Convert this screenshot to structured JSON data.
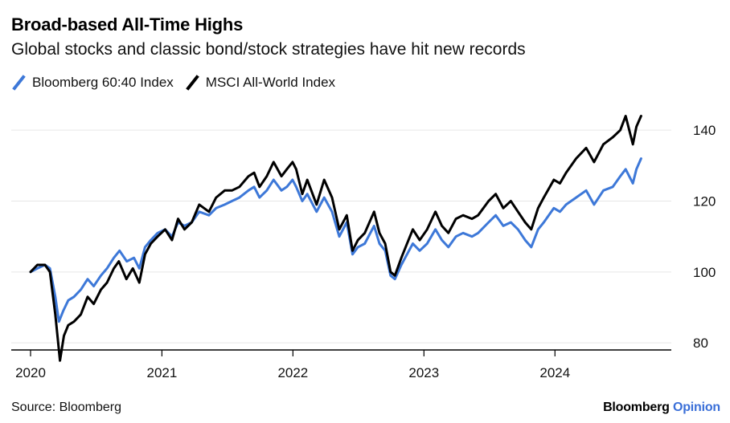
{
  "header": {
    "title": "Broad-based All-Time Highs",
    "subtitle": "Global stocks and classic bond/stock strategies have hit new records"
  },
  "footer": {
    "source": "Source: Bloomberg",
    "brand_main": "Bloomberg",
    "brand_sub": "Opinion"
  },
  "colors": {
    "sixty_forty": "#3d78d8",
    "msci": "#000000",
    "grid": "#e6e6e6",
    "axis": "#000000"
  },
  "chart_data": {
    "type": "line",
    "title": "Broad-based All-Time Highs",
    "subtitle": "Global stocks and classic bond/stock strategies have hit new records",
    "xlabel": "",
    "ylabel": "",
    "xlim": [
      "2020-01-01",
      "2024-10-31"
    ],
    "ylim": [
      78,
      150
    ],
    "x_ticks": [
      "2020",
      "2021",
      "2022",
      "2023",
      "2024"
    ],
    "y_ticks": [
      80,
      100,
      120,
      140
    ],
    "grid": "horizontal",
    "legend": "top-left",
    "series": [
      {
        "name": "Bloomberg 60:40 Index",
        "color": "#3d78d8",
        "points": [
          [
            "2020-01-01",
            100
          ],
          [
            "2020-01-20",
            101
          ],
          [
            "2020-02-10",
            102
          ],
          [
            "2020-02-24",
            101
          ],
          [
            "2020-03-10",
            93
          ],
          [
            "2020-03-20",
            86
          ],
          [
            "2020-04-01",
            89
          ],
          [
            "2020-04-15",
            92
          ],
          [
            "2020-05-01",
            93
          ],
          [
            "2020-05-20",
            95
          ],
          [
            "2020-06-08",
            98
          ],
          [
            "2020-06-25",
            96
          ],
          [
            "2020-07-15",
            99
          ],
          [
            "2020-08-01",
            101
          ],
          [
            "2020-08-20",
            104
          ],
          [
            "2020-09-05",
            106
          ],
          [
            "2020-09-25",
            103
          ],
          [
            "2020-10-15",
            104
          ],
          [
            "2020-10-30",
            101
          ],
          [
            "2020-11-15",
            107
          ],
          [
            "2020-12-01",
            109
          ],
          [
            "2020-12-20",
            111
          ],
          [
            "2021-01-10",
            112
          ],
          [
            "2021-01-29",
            110
          ],
          [
            "2021-02-15",
            114
          ],
          [
            "2021-03-05",
            113
          ],
          [
            "2021-03-25",
            114
          ],
          [
            "2021-04-15",
            117
          ],
          [
            "2021-05-12",
            116
          ],
          [
            "2021-06-01",
            118
          ],
          [
            "2021-06-25",
            119
          ],
          [
            "2021-07-15",
            120
          ],
          [
            "2021-08-05",
            121
          ],
          [
            "2021-08-30",
            123
          ],
          [
            "2021-09-15",
            124
          ],
          [
            "2021-09-30",
            121
          ],
          [
            "2021-10-20",
            123
          ],
          [
            "2021-11-08",
            126
          ],
          [
            "2021-11-30",
            123
          ],
          [
            "2021-12-15",
            124
          ],
          [
            "2021-12-31",
            126
          ],
          [
            "2022-01-10",
            124
          ],
          [
            "2022-01-27",
            120
          ],
          [
            "2022-02-10",
            122
          ],
          [
            "2022-03-08",
            117
          ],
          [
            "2022-03-29",
            121
          ],
          [
            "2022-04-20",
            117
          ],
          [
            "2022-05-10",
            110
          ],
          [
            "2022-05-31",
            114
          ],
          [
            "2022-06-16",
            105
          ],
          [
            "2022-07-01",
            107
          ],
          [
            "2022-07-20",
            108
          ],
          [
            "2022-08-15",
            113
          ],
          [
            "2022-08-30",
            108
          ],
          [
            "2022-09-15",
            106
          ],
          [
            "2022-09-30",
            99
          ],
          [
            "2022-10-12",
            98
          ],
          [
            "2022-10-30",
            102
          ],
          [
            "2022-11-15",
            105
          ],
          [
            "2022-12-01",
            108
          ],
          [
            "2022-12-20",
            106
          ],
          [
            "2023-01-10",
            108
          ],
          [
            "2023-02-02",
            112
          ],
          [
            "2023-02-20",
            109
          ],
          [
            "2023-03-10",
            107
          ],
          [
            "2023-03-31",
            110
          ],
          [
            "2023-04-20",
            111
          ],
          [
            "2023-05-15",
            110
          ],
          [
            "2023-06-01",
            111
          ],
          [
            "2023-06-30",
            114
          ],
          [
            "2023-07-20",
            116
          ],
          [
            "2023-08-10",
            113
          ],
          [
            "2023-08-31",
            114
          ],
          [
            "2023-09-20",
            112
          ],
          [
            "2023-10-10",
            109
          ],
          [
            "2023-10-27",
            107
          ],
          [
            "2023-11-15",
            112
          ],
          [
            "2023-12-01",
            114
          ],
          [
            "2023-12-29",
            118
          ],
          [
            "2024-01-15",
            117
          ],
          [
            "2024-02-01",
            119
          ],
          [
            "2024-02-29",
            121
          ],
          [
            "2024-03-28",
            123
          ],
          [
            "2024-04-19",
            119
          ],
          [
            "2024-05-15",
            123
          ],
          [
            "2024-06-10",
            124
          ],
          [
            "2024-07-01",
            127
          ],
          [
            "2024-07-16",
            129
          ],
          [
            "2024-08-05",
            125
          ],
          [
            "2024-08-15",
            129
          ],
          [
            "2024-08-28",
            132
          ]
        ]
      },
      {
        "name": "MSCI All-World Index",
        "color": "#000000",
        "points": [
          [
            "2020-01-01",
            100
          ],
          [
            "2020-01-20",
            102
          ],
          [
            "2020-02-10",
            102
          ],
          [
            "2020-02-24",
            100
          ],
          [
            "2020-03-10",
            88
          ],
          [
            "2020-03-23",
            75
          ],
          [
            "2020-04-03",
            82
          ],
          [
            "2020-04-15",
            85
          ],
          [
            "2020-05-01",
            86
          ],
          [
            "2020-05-20",
            88
          ],
          [
            "2020-06-08",
            93
          ],
          [
            "2020-06-25",
            91
          ],
          [
            "2020-07-15",
            95
          ],
          [
            "2020-08-01",
            97
          ],
          [
            "2020-08-20",
            101
          ],
          [
            "2020-09-03",
            103
          ],
          [
            "2020-09-24",
            98
          ],
          [
            "2020-10-12",
            101
          ],
          [
            "2020-10-30",
            97
          ],
          [
            "2020-11-15",
            105
          ],
          [
            "2020-12-01",
            108
          ],
          [
            "2020-12-20",
            110
          ],
          [
            "2021-01-10",
            112
          ],
          [
            "2021-01-29",
            109
          ],
          [
            "2021-02-15",
            115
          ],
          [
            "2021-03-05",
            112
          ],
          [
            "2021-03-25",
            114
          ],
          [
            "2021-04-15",
            119
          ],
          [
            "2021-05-12",
            117
          ],
          [
            "2021-06-01",
            121
          ],
          [
            "2021-06-25",
            123
          ],
          [
            "2021-07-15",
            123
          ],
          [
            "2021-08-05",
            124
          ],
          [
            "2021-08-30",
            127
          ],
          [
            "2021-09-15",
            128
          ],
          [
            "2021-09-30",
            124
          ],
          [
            "2021-10-20",
            127
          ],
          [
            "2021-11-08",
            131
          ],
          [
            "2021-11-30",
            127
          ],
          [
            "2021-12-15",
            129
          ],
          [
            "2021-12-31",
            131
          ],
          [
            "2022-01-10",
            129
          ],
          [
            "2022-01-27",
            122
          ],
          [
            "2022-02-10",
            126
          ],
          [
            "2022-03-08",
            119
          ],
          [
            "2022-03-29",
            126
          ],
          [
            "2022-04-20",
            121
          ],
          [
            "2022-05-10",
            112
          ],
          [
            "2022-05-31",
            116
          ],
          [
            "2022-06-16",
            106
          ],
          [
            "2022-07-01",
            109
          ],
          [
            "2022-07-20",
            111
          ],
          [
            "2022-08-15",
            117
          ],
          [
            "2022-08-30",
            111
          ],
          [
            "2022-09-15",
            108
          ],
          [
            "2022-09-30",
            100
          ],
          [
            "2022-10-12",
            99
          ],
          [
            "2022-10-30",
            104
          ],
          [
            "2022-11-15",
            108
          ],
          [
            "2022-12-01",
            112
          ],
          [
            "2022-12-20",
            109
          ],
          [
            "2023-01-10",
            112
          ],
          [
            "2023-02-02",
            117
          ],
          [
            "2023-02-20",
            113
          ],
          [
            "2023-03-10",
            111
          ],
          [
            "2023-03-31",
            115
          ],
          [
            "2023-04-20",
            116
          ],
          [
            "2023-05-15",
            115
          ],
          [
            "2023-06-01",
            116
          ],
          [
            "2023-06-30",
            120
          ],
          [
            "2023-07-20",
            122
          ],
          [
            "2023-08-10",
            118
          ],
          [
            "2023-08-31",
            120
          ],
          [
            "2023-09-20",
            117
          ],
          [
            "2023-10-10",
            114
          ],
          [
            "2023-10-27",
            112
          ],
          [
            "2023-11-15",
            118
          ],
          [
            "2023-12-01",
            121
          ],
          [
            "2023-12-29",
            126
          ],
          [
            "2024-01-15",
            125
          ],
          [
            "2024-02-01",
            128
          ],
          [
            "2024-02-29",
            132
          ],
          [
            "2024-03-28",
            135
          ],
          [
            "2024-04-19",
            131
          ],
          [
            "2024-05-15",
            136
          ],
          [
            "2024-06-10",
            138
          ],
          [
            "2024-07-01",
            140
          ],
          [
            "2024-07-16",
            144
          ],
          [
            "2024-08-05",
            136
          ],
          [
            "2024-08-15",
            141
          ],
          [
            "2024-08-28",
            144
          ]
        ]
      }
    ]
  }
}
